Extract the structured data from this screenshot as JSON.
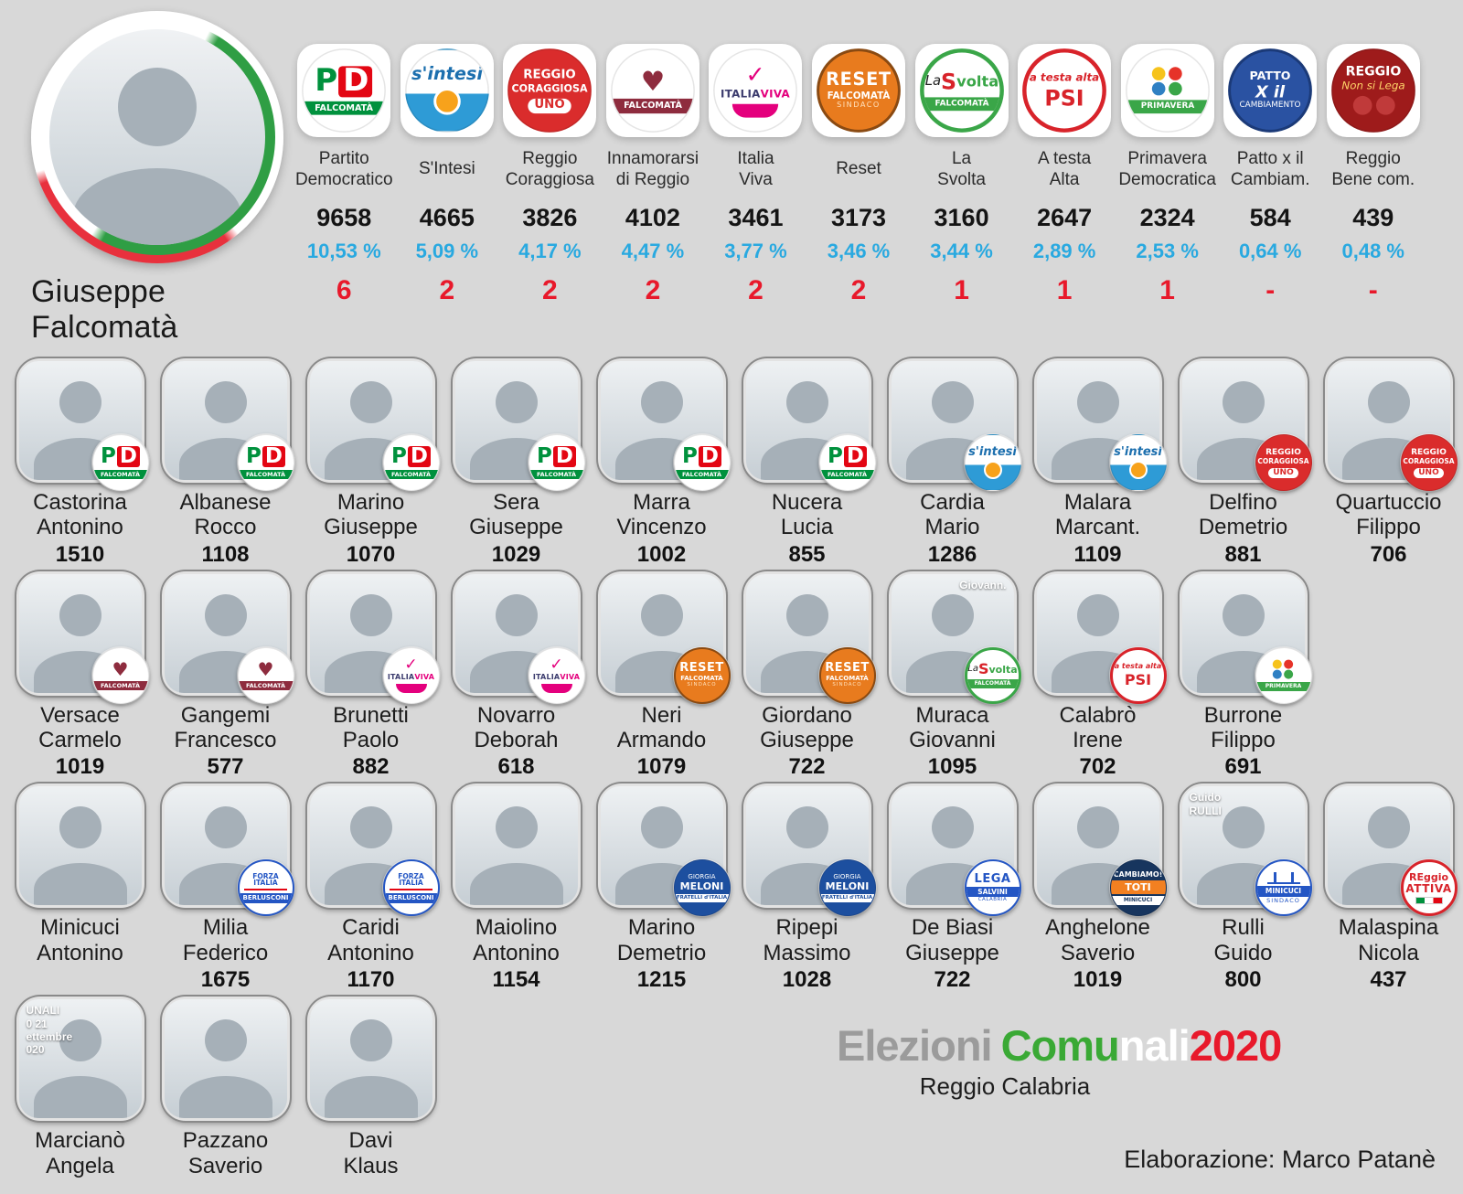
{
  "colors": {
    "background": "#d8d8d8",
    "percent_blue": "#29a9e0",
    "seat_red": "#e8192b",
    "title_gray": "#9b9b9b",
    "title_green": "#3aa935",
    "title_white": "#ffffff",
    "title_red": "#e8192b"
  },
  "chart_data": {
    "type": "table",
    "title": "Elezioni Comunali 2020",
    "subtitle": "Reggio Calabria",
    "mayor": "Giuseppe Falcomatà",
    "parties": [
      {
        "name": "Partito\nDemocratico",
        "votes": "9658",
        "percent": "10,53 %",
        "seats": "6",
        "logo": "pd"
      },
      {
        "name": "S'Intesi",
        "votes": "4665",
        "percent": "5,09 %",
        "seats": "2",
        "logo": "sintesi"
      },
      {
        "name": "Reggio\nCoraggiosa",
        "votes": "3826",
        "percent": "4,17 %",
        "seats": "2",
        "logo": "coraggiosa"
      },
      {
        "name": "Innamorarsi\ndi Reggio",
        "votes": "4102",
        "percent": "4,47 %",
        "seats": "2",
        "logo": "innamorarsi"
      },
      {
        "name": "Italia\nViva",
        "votes": "3461",
        "percent": "3,77 %",
        "seats": "2",
        "logo": "italiaviva"
      },
      {
        "name": "Reset",
        "votes": "3173",
        "percent": "3,46 %",
        "seats": "2",
        "logo": "reset"
      },
      {
        "name": "La\nSvolta",
        "votes": "3160",
        "percent": "3,44 %",
        "seats": "1",
        "logo": "svolta"
      },
      {
        "name": "A testa\nAlta",
        "votes": "2647",
        "percent": "2,89 %",
        "seats": "1",
        "logo": "psi"
      },
      {
        "name": "Primavera\nDemocratica",
        "votes": "2324",
        "percent": "2,53 %",
        "seats": "1",
        "logo": "primavera"
      },
      {
        "name": "Patto x il\nCambiam.",
        "votes": "584",
        "percent": "0,64 %",
        "seats": "-",
        "logo": "patto"
      },
      {
        "name": "Reggio\nBene com.",
        "votes": "439",
        "percent": "0,48 %",
        "seats": "-",
        "logo": "bene"
      }
    ],
    "candidate_rows": [
      [
        {
          "surname": "Castorina",
          "given": "Antonino",
          "votes": "1510",
          "badge": "pd"
        },
        {
          "surname": "Albanese",
          "given": "Rocco",
          "votes": "1108",
          "badge": "pd"
        },
        {
          "surname": "Marino",
          "given": "Giuseppe",
          "votes": "1070",
          "badge": "pd"
        },
        {
          "surname": "Sera",
          "given": "Giuseppe",
          "votes": "1029",
          "badge": "pd"
        },
        {
          "surname": "Marra",
          "given": "Vincenzo",
          "votes": "1002",
          "badge": "pd"
        },
        {
          "surname": "Nucera",
          "given": "Lucia",
          "votes": "855",
          "badge": "pd"
        },
        {
          "surname": "Cardia",
          "given": "Mario",
          "votes": "1286",
          "badge": "sintesi"
        },
        {
          "surname": "Malara",
          "given": "Marcant.",
          "votes": "1109",
          "badge": "sintesi"
        },
        {
          "surname": "Delfino",
          "given": "Demetrio",
          "votes": "881",
          "badge": "coraggiosa"
        },
        {
          "surname": "Quartuccio",
          "given": "Filippo",
          "votes": "706",
          "badge": "coraggiosa"
        }
      ],
      [
        {
          "surname": "Versace",
          "given": "Carmelo",
          "votes": "1019",
          "badge": "innamorarsi"
        },
        {
          "surname": "Gangemi",
          "given": "Francesco",
          "votes": "577",
          "badge": "innamorarsi"
        },
        {
          "surname": "Brunetti",
          "given": "Paolo",
          "votes": "882",
          "badge": "italiaviva"
        },
        {
          "surname": "Novarro",
          "given": "Deborah",
          "votes": "618",
          "badge": "italiaviva"
        },
        {
          "surname": "Neri",
          "given": "Armando",
          "votes": "1079",
          "badge": "reset"
        },
        {
          "surname": "Giordano",
          "given": "Giuseppe",
          "votes": "722",
          "badge": "reset"
        },
        {
          "surname": "Muraca",
          "given": "Giovanni",
          "votes": "1095",
          "badge": "svolta",
          "overlay": {
            "pos": "tr",
            "lines": [
              "Giovann."
            ]
          }
        },
        {
          "surname": "Calabrò",
          "given": "Irene",
          "votes": "702",
          "badge": "psi"
        },
        {
          "surname": "Burrone",
          "given": "Filippo",
          "votes": "691",
          "badge": "primavera"
        }
      ],
      [
        {
          "surname": "Minicuci",
          "given": "Antonino",
          "votes": "",
          "badge": null
        },
        {
          "surname": "Milia",
          "given": "Federico",
          "votes": "1675",
          "badge": "fi"
        },
        {
          "surname": "Caridi",
          "given": "Antonino",
          "votes": "1170",
          "badge": "fi"
        },
        {
          "surname": "Maiolino",
          "given": "Antonino",
          "votes": "1154",
          "badge": null
        },
        {
          "surname": "Marino",
          "given": "Demetrio",
          "votes": "1215",
          "badge": "fdi"
        },
        {
          "surname": "Ripepi",
          "given": "Massimo",
          "votes": "1028",
          "badge": "fdi"
        },
        {
          "surname": "De Biasi",
          "given": "Giuseppe",
          "votes": "722",
          "badge": "lega"
        },
        {
          "surname": "Anghelone",
          "given": "Saverio",
          "votes": "1019",
          "badge": "cambiamo"
        },
        {
          "surname": "Rulli",
          "given": "Guido",
          "votes": "800",
          "badge": "minicuci",
          "overlay": {
            "pos": "tl",
            "lines": [
              "Guido",
              "RULLI"
            ]
          }
        },
        {
          "surname": "Malaspina",
          "given": "Nicola",
          "votes": "437",
          "badge": "attiva"
        }
      ],
      [
        {
          "surname": "Marcianò",
          "given": "Angela",
          "votes": "",
          "badge": null,
          "overlay": {
            "pos": "tl",
            "lines": [
              "UNALI",
              "0 21",
              "ettembre",
              "020"
            ]
          }
        },
        {
          "surname": "Pazzano",
          "given": "Saverio",
          "votes": "",
          "badge": null
        },
        {
          "surname": "Davi",
          "given": "Klaus",
          "votes": "",
          "badge": null
        }
      ]
    ]
  },
  "logos": {
    "pd": {
      "rows": [
        [
          "P",
          "D"
        ],
        [
          "FALCOMATÀ"
        ]
      ]
    },
    "sintesi": {
      "rows": [
        [
          "s'intesi"
        ]
      ]
    },
    "coraggiosa": {
      "rows": [
        [
          "REGGIO"
        ],
        [
          "CORAGGIOSA"
        ],
        [
          "UNO"
        ]
      ]
    },
    "innamorarsi": {
      "rows": [
        [
          "♥"
        ],
        [
          "FALCOMATÀ"
        ]
      ]
    },
    "italiaviva": {
      "rows": [
        [
          "✓"
        ],
        [
          "ITALIA",
          "VIVA"
        ]
      ]
    },
    "reset": {
      "rows": [
        [
          "RESET"
        ],
        [
          "FALCOMATÀ"
        ],
        [
          "SINDACO"
        ]
      ]
    },
    "svolta": {
      "rows": [
        [
          "La",
          "S",
          "volta"
        ],
        [
          "FALCOMATÀ"
        ]
      ]
    },
    "psi": {
      "rows": [
        [
          "a testa alta"
        ],
        [
          "PSI"
        ]
      ]
    },
    "primavera": {
      "rows": [
        [
          "●",
          "●"
        ],
        [
          "●",
          "●"
        ],
        [
          "PRIMAVERA"
        ]
      ]
    },
    "patto": {
      "rows": [
        [
          "PATTO"
        ],
        [
          "X il"
        ],
        [
          "CAMBIAMENTO"
        ]
      ]
    },
    "bene": {
      "rows": [
        [
          "REGGIO"
        ],
        [
          "Non si Lega"
        ]
      ]
    },
    "fi": {
      "rows": [
        [
          "FORZA ITALIA"
        ],
        [
          "BERLUSCONI"
        ]
      ]
    },
    "fdi": {
      "rows": [
        [
          "GIORGIA"
        ],
        [
          "MELONI"
        ],
        [
          "FRATELLI d'ITALIA"
        ]
      ]
    },
    "lega": {
      "rows": [
        [
          "LEGA"
        ],
        [
          "SALVINI"
        ],
        [
          "CALABRIA"
        ]
      ]
    },
    "cambiamo": {
      "rows": [
        [
          "CAMBIAMO!"
        ],
        [
          "TOTI"
        ],
        [
          "MINICUCI"
        ]
      ]
    },
    "minicuci": {
      "rows": [
        [
          "MINICUCI"
        ],
        [
          "SINDACO"
        ]
      ]
    },
    "attiva": {
      "rows": [
        [
          "REggio"
        ],
        [
          "ATTIVA"
        ]
      ]
    }
  },
  "footer": {
    "title_parts": [
      {
        "text": "Elezioni",
        "color": "#9b9b9b"
      },
      {
        "text": "Comu",
        "color": "#3aa935"
      },
      {
        "text": "nali",
        "color": "#ffffff"
      },
      {
        "text": "2020",
        "color": "#e8192b"
      }
    ],
    "subtitle": "Reggio Calabria",
    "credit": "Elaborazione: Marco Patanè"
  }
}
